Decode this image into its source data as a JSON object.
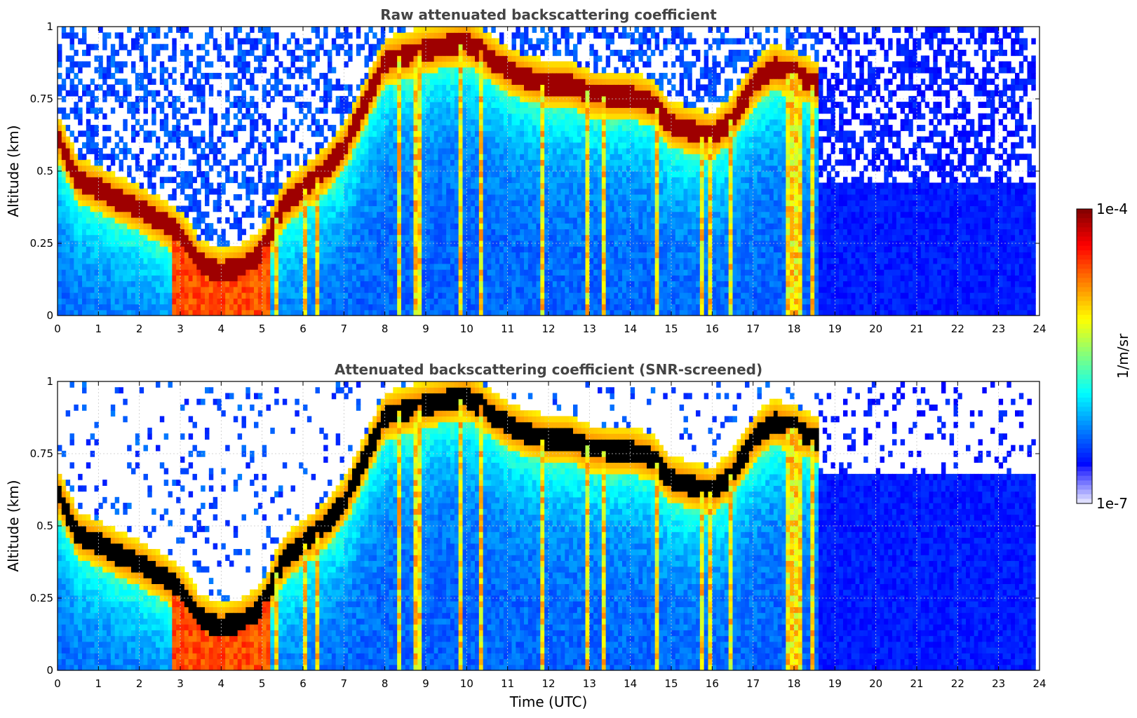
{
  "chart_data": [
    {
      "type": "heatmap",
      "title": "Raw attenuated backscattering coefficient",
      "xlabel": "",
      "ylabel": "Altitude (km)",
      "xlim": [
        0,
        24
      ],
      "ylim": [
        0,
        1
      ],
      "xticks": [
        "0",
        "1",
        "2",
        "3",
        "4",
        "5",
        "6",
        "7",
        "8",
        "9",
        "10",
        "11",
        "12",
        "13",
        "14",
        "15",
        "16",
        "17",
        "18",
        "19",
        "20",
        "21",
        "22",
        "23",
        "24"
      ],
      "yticks": [
        "0",
        "0.25",
        "0.5",
        "0.75",
        "1"
      ],
      "ytick_values": [
        0,
        0.25,
        0.5,
        0.75,
        1
      ],
      "grid": true,
      "colormap": "jet",
      "cloud_layer_altitude_km": [
        [
          0.0,
          0.62
        ],
        [
          0.5,
          0.47
        ],
        [
          1.0,
          0.44
        ],
        [
          1.5,
          0.4
        ],
        [
          2.0,
          0.37
        ],
        [
          2.5,
          0.33
        ],
        [
          3.0,
          0.28
        ],
        [
          3.5,
          0.18
        ],
        [
          4.0,
          0.15
        ],
        [
          4.5,
          0.17
        ],
        [
          5.0,
          0.22
        ],
        [
          5.5,
          0.38
        ],
        [
          6.0,
          0.44
        ],
        [
          6.5,
          0.5
        ],
        [
          7.0,
          0.58
        ],
        [
          8.0,
          0.88
        ],
        [
          9.0,
          0.92
        ],
        [
          10.0,
          0.95
        ],
        [
          11.0,
          0.85
        ],
        [
          11.5,
          0.82
        ],
        [
          12.0,
          0.8
        ],
        [
          12.5,
          0.8
        ],
        [
          13.0,
          0.77
        ],
        [
          13.5,
          0.76
        ],
        [
          14.0,
          0.76
        ],
        [
          14.5,
          0.74
        ],
        [
          15.0,
          0.66
        ],
        [
          15.5,
          0.64
        ],
        [
          16.0,
          0.62
        ],
        [
          16.5,
          0.68
        ],
        [
          17.0,
          0.8
        ],
        [
          17.5,
          0.86
        ],
        [
          18.0,
          0.84
        ],
        [
          18.5,
          0.8
        ]
      ],
      "clear_sky_after_utc": 18.6,
      "screened": false
    },
    {
      "type": "heatmap",
      "title": "Attenuated backscattering coefficient (SNR-screened)",
      "xlabel": "Time (UTC)",
      "ylabel": "Altitude (km)",
      "xlim": [
        0,
        24
      ],
      "ylim": [
        0,
        1
      ],
      "xticks": [
        "0",
        "1",
        "2",
        "3",
        "4",
        "5",
        "6",
        "7",
        "8",
        "9",
        "10",
        "11",
        "12",
        "13",
        "14",
        "15",
        "16",
        "17",
        "18",
        "19",
        "20",
        "21",
        "22",
        "23",
        "24"
      ],
      "yticks": [
        "0",
        "0.25",
        "0.5",
        "0.75",
        "1"
      ],
      "ytick_values": [
        0,
        0.25,
        0.5,
        0.75,
        1
      ],
      "grid": true,
      "colormap": "jet",
      "screened": true,
      "screened_top_altitude_km": 0.67
    }
  ],
  "colorbar": {
    "max_label": "1e-4",
    "min_label": "1e-7",
    "unit_label": "1/m/sr",
    "scale": "log",
    "range": [
      1e-07,
      0.0001
    ]
  }
}
